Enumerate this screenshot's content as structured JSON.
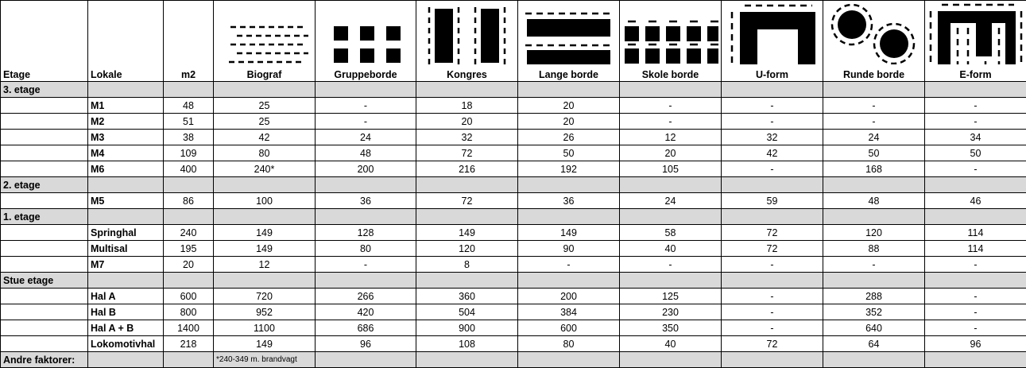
{
  "header": {
    "etage": "Etage",
    "lokale": "Lokale",
    "m2": "m2",
    "layouts": [
      {
        "label": "Biograf",
        "icon": "cinema-rows-icon"
      },
      {
        "label": "Gruppeborde",
        "icon": "group-tables-icon"
      },
      {
        "label": "Kongres",
        "icon": "congress-tables-icon"
      },
      {
        "label": "Lange borde",
        "icon": "long-tables-icon"
      },
      {
        "label": "Skole borde",
        "icon": "school-tables-icon"
      },
      {
        "label": "U-form",
        "icon": "u-shape-icon"
      },
      {
        "label": "Runde borde",
        "icon": "round-tables-icon"
      },
      {
        "label": "E-form",
        "icon": "e-shape-icon"
      }
    ]
  },
  "sections": [
    {
      "name": "3. etage",
      "rows": [
        {
          "lokale": "M1",
          "m2": "48",
          "values": [
            "25",
            "-",
            "18",
            "20",
            "-",
            "-",
            "-",
            "-"
          ]
        },
        {
          "lokale": "M2",
          "m2": "51",
          "values": [
            "25",
            "-",
            "20",
            "20",
            "-",
            "-",
            "-",
            "-"
          ]
        },
        {
          "lokale": "M3",
          "m2": "38",
          "values": [
            "42",
            "24",
            "32",
            "26",
            "12",
            "32",
            "24",
            "34"
          ]
        },
        {
          "lokale": "M4",
          "m2": "109",
          "values": [
            "80",
            "48",
            "72",
            "50",
            "20",
            "42",
            "50",
            "50"
          ]
        },
        {
          "lokale": "M6",
          "m2": "400",
          "values": [
            "240*",
            "200",
            "216",
            "192",
            "105",
            "-",
            "168",
            "-"
          ]
        }
      ]
    },
    {
      "name": "2. etage",
      "rows": [
        {
          "lokale": "M5",
          "m2": "86",
          "values": [
            "100",
            "36",
            "72",
            "36",
            "24",
            "59",
            "48",
            "46"
          ]
        }
      ]
    },
    {
      "name": "1. etage",
      "rows": [
        {
          "lokale": "Springhal",
          "m2": "240",
          "values": [
            "149",
            "128",
            "149",
            "149",
            "58",
            "72",
            "120",
            "114"
          ]
        },
        {
          "lokale": "Multisal",
          "m2": "195",
          "values": [
            "149",
            "80",
            "120",
            "90",
            "40",
            "72",
            "88",
            "114"
          ]
        },
        {
          "lokale": "M7",
          "m2": "20",
          "values": [
            "12",
            "-",
            "8",
            "-",
            "-",
            "-",
            "-",
            "-"
          ]
        }
      ]
    },
    {
      "name": "Stue etage",
      "rows": [
        {
          "lokale": "Hal A",
          "m2": "600",
          "values": [
            "720",
            "266",
            "360",
            "200",
            "125",
            "-",
            "288",
            "-"
          ]
        },
        {
          "lokale": "Hal B",
          "m2": "800",
          "values": [
            "952",
            "420",
            "504",
            "384",
            "230",
            "-",
            "352",
            "-"
          ]
        },
        {
          "lokale": "Hal A + B",
          "m2": "1400",
          "values": [
            "1100",
            "686",
            "900",
            "600",
            "350",
            "-",
            "640",
            "-"
          ]
        },
        {
          "lokale": "Lokomotivhal",
          "m2": "218",
          "values": [
            "149",
            "96",
            "108",
            "80",
            "40",
            "72",
            "64",
            "96"
          ]
        }
      ]
    }
  ],
  "footer": {
    "label": "Andre faktorer:",
    "note": "*240-349 m. brandvagt"
  }
}
